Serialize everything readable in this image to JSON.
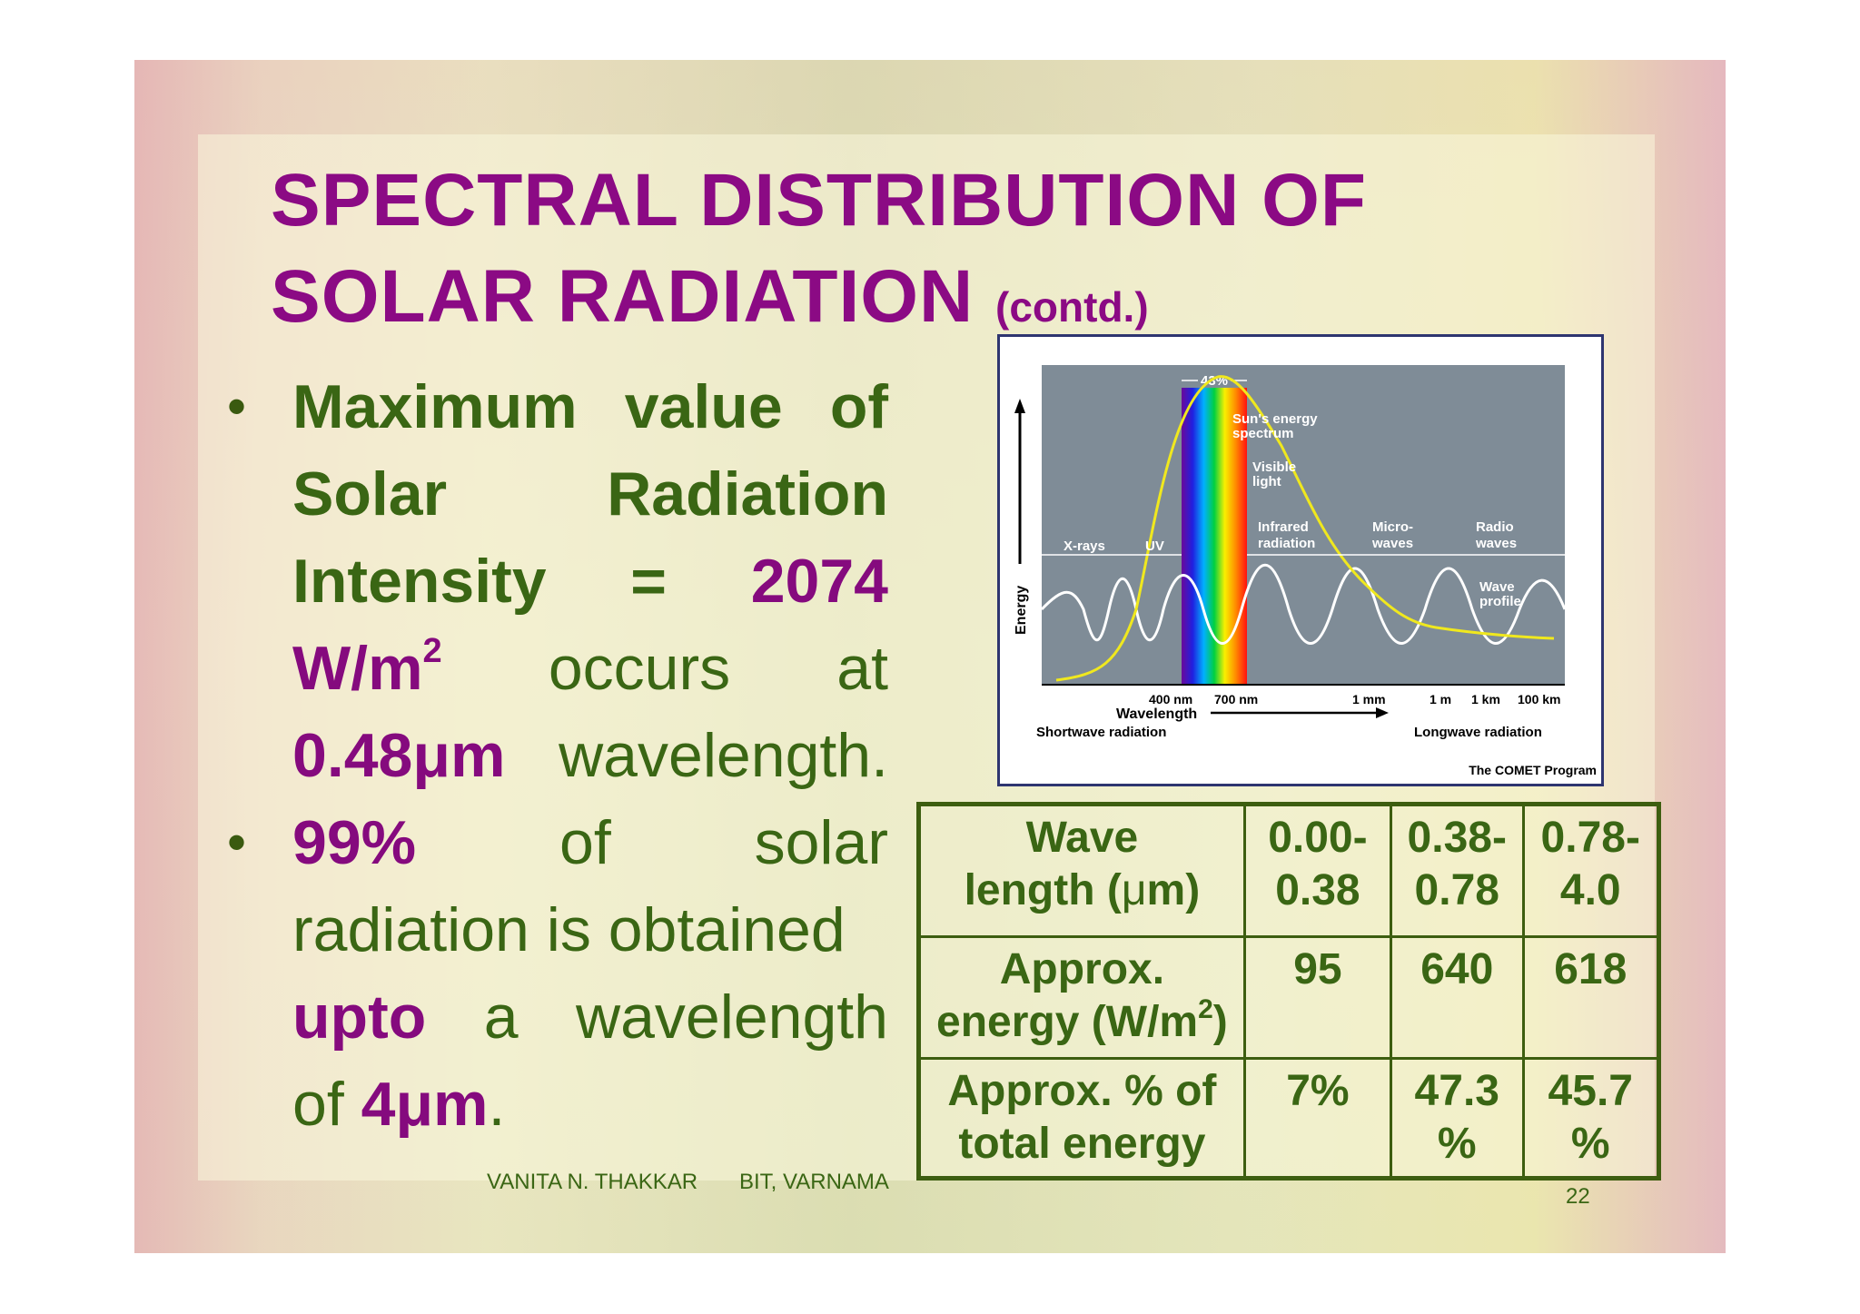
{
  "slide": {
    "title_line1": "SPECTRAL DISTRIBUTION OF",
    "title_line2": "SOLAR RADIATION",
    "title_suffix": "(contd.)"
  },
  "bullet1": {
    "l1a": "Maximum",
    "l1b": "value",
    "l1c": "of",
    "l2a": "Solar",
    "l2b": "Radiation",
    "l3a": "Intensity",
    "l3b": "=",
    "l3c": "2074",
    "l4_unit": "W/m",
    "l4_sup": "2",
    "l4b": "occurs",
    "l4c": "at",
    "l5_value": "0.48μm",
    "l5b": "wavelength."
  },
  "bullet2": {
    "l1a": "99%",
    "l1b": "of",
    "l1c": "solar",
    "l2": "radiation is obtained",
    "l3a": "upto",
    "l3b": "a",
    "l3c": "wavelength",
    "l4a": "of",
    "l4_value": "4μm",
    "l4_end": "."
  },
  "figure": {
    "peak_label": "43%",
    "curve_label_1": "Sun's energy",
    "curve_label_2": "spectrum",
    "visible_1": "Visible",
    "visible_2": "light",
    "xrays": "X-rays",
    "uv": "UV",
    "infrared_1": "Infrared",
    "infrared_2": "radiation",
    "micro_1": "Micro-",
    "micro_2": "waves",
    "radio_1": "Radio",
    "radio_2": "waves",
    "wave_1": "Wave",
    "wave_2": "profile",
    "y_axis": "Energy",
    "tick_400": "400 nm",
    "tick_700": "700 nm",
    "tick_1mm": "1 mm",
    "tick_1m": "1 m",
    "tick_1km": "1 km",
    "tick_100km": "100 km",
    "x_axis": "Wavelength",
    "shortwave": "Shortwave radiation",
    "longwave": "Longwave radiation",
    "credit": "The COMET Program",
    "colors": {
      "background": "#7f8c97",
      "curve": "#f0e81e",
      "wave": "#ffffff"
    }
  },
  "table": {
    "h1_l1": "Wave",
    "h1_l2a": "length (",
    "h1_mu": "μ",
    "h1_l2b": "m)",
    "c1": "0.00-\n0.38",
    "c2": "0.38-\n0.78",
    "c3": "0.78-\n4.0",
    "r2_h_l1": "Approx.",
    "r2_h_l2": "energy (W/m",
    "r2_h_sup": "2",
    "r2_h_end": ")",
    "r2_c1": "95",
    "r2_c2": "640",
    "r2_c3": "618",
    "r3_h": "Approx. % of\ntotal energy",
    "r3_c1": "7%",
    "r3_c2": "47.3\n%",
    "r3_c3": "45.7\n%"
  },
  "footer": {
    "author": "VANITA N. THAKKAR",
    "institute": "BIT, VARNAMA",
    "page_number": "22"
  }
}
